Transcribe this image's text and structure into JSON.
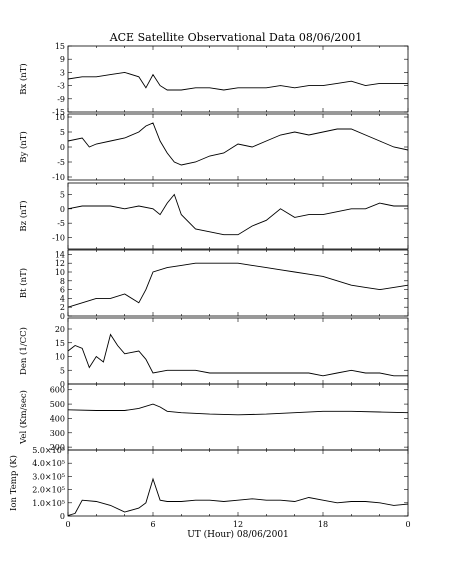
{
  "chart_data": {
    "type": "line",
    "title": "ACE Satellite Observational Data   08/06/2001",
    "xlabel": "UT (Hour)   08/06/2001",
    "x_ticks": [
      "0",
      "6",
      "12",
      "18",
      "0"
    ],
    "xlim": [
      0,
      24
    ],
    "grid": false,
    "panels": [
      {
        "ylabel": "Bx (nT)",
        "ylim": [
          -15,
          15
        ],
        "y_ticks": [
          "15",
          "9",
          "3",
          "-3",
          "-9",
          "-15"
        ],
        "x": [
          0,
          1,
          2,
          3,
          4,
          5,
          5.5,
          6,
          6.5,
          7,
          8,
          9,
          10,
          11,
          12,
          13,
          14,
          15,
          16,
          17,
          18,
          19,
          20,
          21,
          22,
          23,
          24
        ],
        "values": [
          0,
          1,
          1,
          2,
          3,
          1,
          -4,
          2,
          -3,
          -5,
          -5,
          -4,
          -4,
          -5,
          -4,
          -4,
          -4,
          -3,
          -4,
          -3,
          -3,
          -2,
          -1,
          -3,
          -2,
          -2,
          -2
        ]
      },
      {
        "ylabel": "By (nT)",
        "ylim": [
          -11,
          11
        ],
        "y_ticks": [
          "10",
          "5",
          "0",
          "-5",
          "-10"
        ],
        "x": [
          0,
          1,
          1.5,
          2,
          3,
          4,
          5,
          5.5,
          6,
          6.5,
          7,
          7.5,
          8,
          9,
          10,
          11,
          12,
          13,
          14,
          15,
          16,
          17,
          18,
          19,
          20,
          21,
          22,
          23,
          24
        ],
        "values": [
          2,
          3,
          0,
          1,
          2,
          3,
          5,
          7,
          8,
          2,
          -2,
          -5,
          -6,
          -5,
          -3,
          -2,
          1,
          0,
          2,
          4,
          5,
          4,
          5,
          6,
          6,
          4,
          2,
          0,
          -1
        ]
      },
      {
        "ylabel": "Bz (nT)",
        "ylim": [
          -14,
          9
        ],
        "y_ticks": [
          "5",
          "0",
          "-5",
          "-10"
        ],
        "x": [
          0,
          1,
          2,
          3,
          4,
          5,
          6,
          6.5,
          7,
          7.5,
          8,
          9,
          10,
          11,
          12,
          13,
          14,
          15,
          16,
          17,
          18,
          19,
          20,
          21,
          22,
          23,
          24
        ],
        "values": [
          0,
          1,
          1,
          1,
          0,
          1,
          0,
          -2,
          2,
          5,
          -2,
          -7,
          -8,
          -9,
          -9,
          -6,
          -4,
          0,
          -3,
          -2,
          -2,
          -1,
          0,
          0,
          2,
          1,
          1
        ]
      },
      {
        "ylabel": "Bt (nT)",
        "ylim": [
          0,
          15
        ],
        "y_ticks": [
          "14",
          "12",
          "10",
          "8",
          "6",
          "4",
          "2",
          "0"
        ],
        "x": [
          0,
          1,
          2,
          3,
          4,
          5,
          5.5,
          6,
          7,
          8,
          9,
          10,
          11,
          12,
          13,
          14,
          15,
          16,
          17,
          18,
          19,
          20,
          21,
          22,
          23,
          24
        ],
        "values": [
          2,
          3,
          4,
          4,
          5,
          3,
          6,
          10,
          11,
          11.5,
          12,
          12,
          12,
          12,
          11.5,
          11,
          10.5,
          10,
          9.5,
          9,
          8,
          7,
          6.5,
          6,
          6.5,
          7
        ]
      },
      {
        "ylabel": "Den (1/CC)",
        "ylim": [
          0,
          24
        ],
        "y_ticks": [
          "20",
          "15",
          "10",
          "5",
          "0"
        ],
        "x": [
          0,
          0.5,
          1,
          1.5,
          2,
          2.5,
          3,
          3.5,
          4,
          5,
          5.5,
          6,
          7,
          8,
          9,
          10,
          11,
          12,
          13,
          14,
          15,
          16,
          17,
          18,
          19,
          20,
          21,
          22,
          23,
          24
        ],
        "values": [
          12,
          14,
          13,
          6,
          10,
          8,
          18,
          14,
          11,
          12,
          9,
          4,
          5,
          5,
          5,
          4,
          4,
          4,
          4,
          4,
          4,
          4,
          4,
          3,
          4,
          5,
          4,
          4,
          3,
          3
        ]
      },
      {
        "ylabel": "Vel (Km/sec)",
        "ylim": [
          180,
          640
        ],
        "y_ticks": [
          "600",
          "500",
          "400",
          "300",
          "200"
        ],
        "x": [
          0,
          2,
          4,
          5,
          6,
          6.5,
          7,
          8,
          10,
          12,
          14,
          16,
          18,
          20,
          22,
          24
        ],
        "values": [
          460,
          455,
          455,
          470,
          500,
          480,
          450,
          440,
          430,
          425,
          430,
          440,
          450,
          450,
          445,
          440
        ]
      },
      {
        "ylabel": "Ion Temp (K)",
        "ylim": [
          0,
          500000
        ],
        "y_ticks": [
          "5.0×10⁵",
          "4.0×10⁵",
          "3.0×10⁵",
          "2.0×10⁵",
          "1.0×10⁵",
          "0"
        ],
        "x": [
          0,
          0.5,
          1,
          2,
          3,
          4,
          5,
          5.5,
          6,
          6.5,
          7,
          8,
          9,
          10,
          11,
          12,
          13,
          14,
          15,
          16,
          17,
          18,
          19,
          20,
          21,
          22,
          23,
          24
        ],
        "values": [
          0,
          20000,
          120000,
          110000,
          80000,
          30000,
          60000,
          100000,
          280000,
          120000,
          110000,
          110000,
          120000,
          120000,
          110000,
          120000,
          130000,
          120000,
          120000,
          110000,
          140000,
          120000,
          100000,
          110000,
          110000,
          100000,
          80000,
          90000
        ]
      }
    ]
  }
}
